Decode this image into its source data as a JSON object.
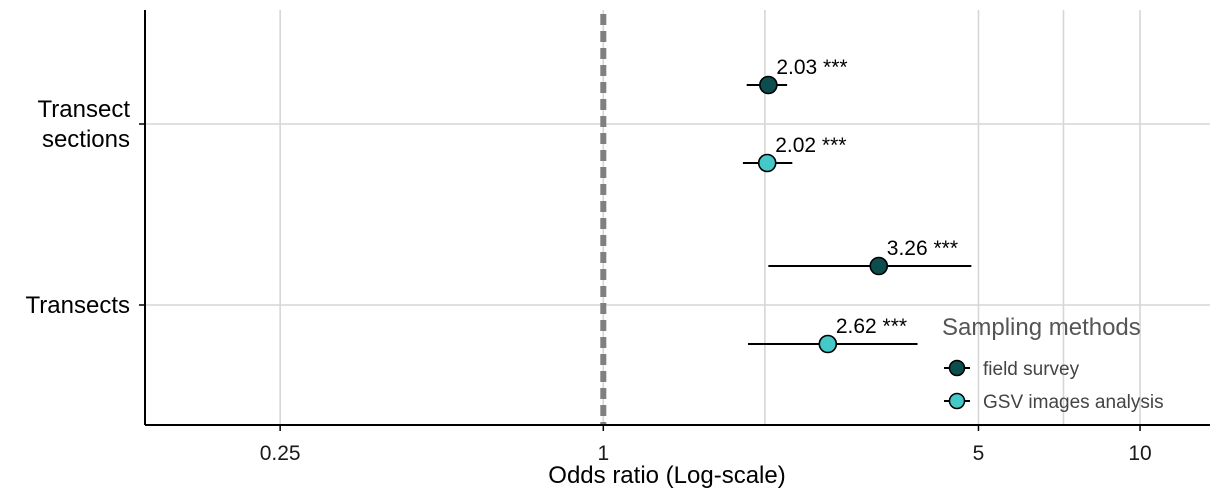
{
  "chart_data": {
    "type": "scatter",
    "xlabel": "Odds ratio (Log-scale)",
    "x_scale": "log",
    "xlim": [
      0.14,
      13.5
    ],
    "x_ticks": [
      {
        "value": 0.25,
        "label": "0.25"
      },
      {
        "value": 1,
        "label": "1"
      },
      {
        "value": 5,
        "label": "5"
      },
      {
        "value": 10,
        "label": "10"
      }
    ],
    "x_minor_gridlines": [
      2,
      7.2
    ],
    "reference_line": {
      "value": 1,
      "style": "dashed",
      "color": "#808080"
    },
    "categories": [
      "Transect sections",
      "Transects"
    ],
    "category_labels": [
      [
        "Transect",
        "sections"
      ],
      [
        "Transects"
      ]
    ],
    "series": [
      {
        "name": "field survey",
        "color": "#0c4d4d",
        "points": [
          {
            "category": "Transect sections",
            "value": 2.03,
            "ci": [
              1.85,
              2.2
            ],
            "label": "2.03 ***"
          },
          {
            "category": "Transects",
            "value": 3.26,
            "ci": [
              2.03,
              4.85
            ],
            "label": "3.26 ***"
          }
        ]
      },
      {
        "name": "GSV images analysis",
        "color": "#45c8c8",
        "points": [
          {
            "category": "Transect sections",
            "value": 2.02,
            "ci": [
              1.82,
              2.25
            ],
            "label": "2.02 ***"
          },
          {
            "category": "Transects",
            "value": 2.62,
            "ci": [
              1.86,
              3.85
            ],
            "label": "2.62 ***"
          }
        ]
      }
    ],
    "legend": {
      "title": "Sampling methods",
      "position": "bottom-right"
    },
    "grid": true
  }
}
